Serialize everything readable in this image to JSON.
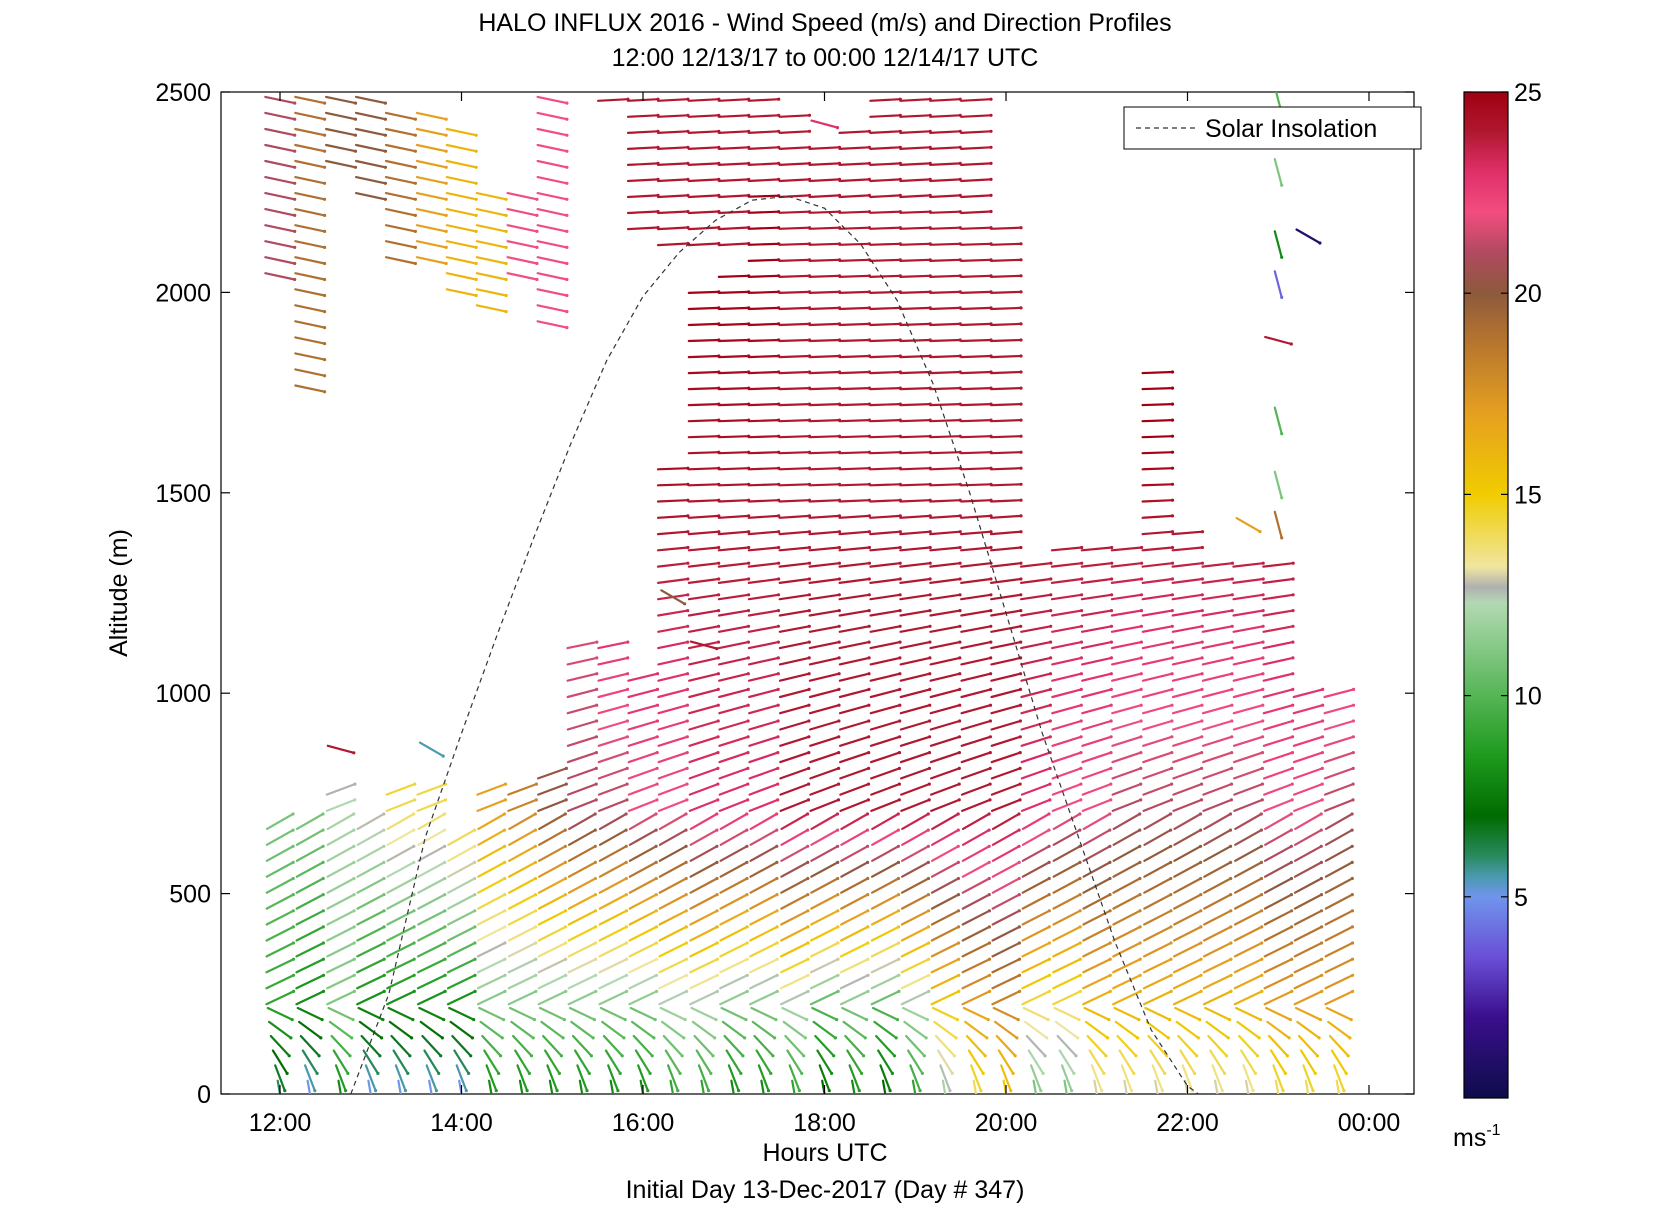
{
  "chart_data": {
    "type": "wind-barb-profile",
    "title": "HALO INFLUX 2016 - Wind Speed (m/s) and Direction Profiles",
    "subtitle": "12:00 12/13/17 to 00:00 12/14/17  UTC",
    "xlabel": "Hours UTC",
    "xlabel2": "Initial Day 13-Dec-2017 (Day # 347)",
    "ylabel": "Altitude (m)",
    "xlim": [
      11.3,
      24.6
    ],
    "ylim": [
      0,
      2500
    ],
    "x_ticks": [
      12,
      14,
      16,
      18,
      20,
      22,
      24
    ],
    "x_tick_labels": [
      "12:00",
      "14:00",
      "16:00",
      "18:00",
      "20:00",
      "22:00",
      "00:00"
    ],
    "y_ticks": [
      0,
      500,
      1000,
      1500,
      2000,
      2500
    ],
    "y_tick_labels": [
      "0",
      "500",
      "1000",
      "1500",
      "2000",
      "2500"
    ],
    "legend": {
      "entries": [
        "Solar Insolation"
      ],
      "placement": "top-right",
      "line_style": "dashed"
    },
    "colorbar": {
      "min": 0,
      "max": 25,
      "ticks": [
        5,
        10,
        15,
        20,
        25
      ],
      "tick_labels": [
        "5",
        "10",
        "15",
        "20",
        "25"
      ],
      "unit_label": "ms",
      "unit_exponent": "-1",
      "stops": [
        {
          "v": 0,
          "c": "#0d0d4a"
        },
        {
          "v": 2,
          "c": "#3a0e8c"
        },
        {
          "v": 3.5,
          "c": "#6a4fd6"
        },
        {
          "v": 5,
          "c": "#6f95ec"
        },
        {
          "v": 5.5,
          "c": "#4a9ab0"
        },
        {
          "v": 6,
          "c": "#2a8a60"
        },
        {
          "v": 7,
          "c": "#006b00"
        },
        {
          "v": 8.5,
          "c": "#1e9a1e"
        },
        {
          "v": 10,
          "c": "#55b555"
        },
        {
          "v": 12.3,
          "c": "#b3d9b3"
        },
        {
          "v": 12.7,
          "c": "#b0b0b0"
        },
        {
          "v": 13.2,
          "c": "#f0e6a0"
        },
        {
          "v": 15,
          "c": "#f0cc00"
        },
        {
          "v": 17,
          "c": "#e6a020"
        },
        {
          "v": 19,
          "c": "#b07030"
        },
        {
          "v": 20,
          "c": "#8c5a3c"
        },
        {
          "v": 21,
          "c": "#b04a60"
        },
        {
          "v": 22,
          "c": "#f24d80"
        },
        {
          "v": 23,
          "c": "#e0306a"
        },
        {
          "v": 24,
          "c": "#b01830"
        },
        {
          "v": 25,
          "c": "#a00010"
        }
      ]
    },
    "solar_insolation": {
      "x": [
        12.78,
        13.2,
        13.6,
        14.0,
        14.4,
        14.8,
        15.2,
        15.6,
        16.0,
        16.4,
        16.8,
        17.2,
        17.6,
        18.0,
        18.4,
        18.8,
        19.2,
        19.6,
        20.0,
        20.4,
        20.8,
        21.2,
        21.6,
        22.0,
        22.12
      ],
      "y": [
        0,
        250,
        640,
        900,
        1150,
        1390,
        1620,
        1830,
        1990,
        2100,
        2180,
        2230,
        2240,
        2210,
        2120,
        1980,
        1770,
        1500,
        1200,
        900,
        640,
        380,
        160,
        20,
        0
      ]
    },
    "barb_grid": {
      "times": [
        12.0,
        12.33,
        12.67,
        13.0,
        13.33,
        13.67,
        14.0,
        14.33,
        14.67,
        15.0,
        15.33,
        15.67,
        16.0,
        16.33,
        16.67,
        17.0,
        17.33,
        17.67,
        18.0,
        18.33,
        18.67,
        19.0,
        19.33,
        19.67,
        20.0,
        20.33,
        20.67,
        21.0,
        21.33,
        21.67,
        22.0,
        22.33,
        22.67,
        23.0,
        23.33,
        23.67
      ],
      "altitude_step_m": 40,
      "profiles": [
        {
          "t": 12.0,
          "top_m": 700,
          "upper_m": [
            2040,
            2480
          ],
          "low_speed_ms": 6,
          "mid_speed_ms": 11,
          "upper_speed_ms": 21
        },
        {
          "t": 12.33,
          "top_m": 700,
          "upper_m": [
            1760,
            2480
          ],
          "low_speed_ms": 5,
          "mid_speed_ms": 11,
          "upper_speed_ms": 19
        },
        {
          "t": 12.67,
          "top_m": 760,
          "upper_m": [
            2320,
            2480
          ],
          "low_speed_ms": 8,
          "mid_speed_ms": 12,
          "upper_speed_ms": 20
        },
        {
          "t": 13.0,
          "top_m": 700,
          "upper_m": [
            2240,
            2480
          ],
          "low_speed_ms": 5,
          "mid_speed_ms": 13,
          "upper_speed_ms": 20
        },
        {
          "t": 13.33,
          "top_m": 790,
          "upper_m": [
            2080,
            2470
          ],
          "low_speed_ms": 5,
          "mid_speed_ms": 14,
          "upper_speed_ms": 19
        },
        {
          "t": 13.67,
          "top_m": 790,
          "upper_m": [
            2080,
            2440
          ],
          "low_speed_ms": 5,
          "mid_speed_ms": 14,
          "upper_speed_ms": 17
        },
        {
          "t": 14.0,
          "top_m": 640,
          "upper_m": [
            2000,
            2400
          ],
          "low_speed_ms": 5,
          "mid_speed_ms": 15,
          "upper_speed_ms": 16
        },
        {
          "t": 14.33,
          "top_m": 790,
          "upper_m": [
            1960,
            2240
          ],
          "low_speed_ms": 8,
          "mid_speed_ms": 17,
          "upper_speed_ms": 16
        },
        {
          "t": 14.67,
          "top_m": 790,
          "upper_m": [
            2040,
            2240
          ],
          "low_speed_ms": 8,
          "mid_speed_ms": 18,
          "upper_speed_ms": 22
        },
        {
          "t": 15.0,
          "top_m": 800,
          "upper_m": [
            1920,
            2480
          ],
          "low_speed_ms": 8,
          "mid_speed_ms": 20,
          "upper_speed_ms": 22
        },
        {
          "t": 15.33,
          "top_m": 1120,
          "upper_m": [
            0,
            0
          ],
          "low_speed_ms": 8,
          "mid_speed_ms": 21,
          "upper_speed_ms": 22
        },
        {
          "t": 15.67,
          "top_m": 1120,
          "upper_m": [
            2480,
            2480
          ],
          "low_speed_ms": 8,
          "mid_speed_ms": 21,
          "upper_speed_ms": 24
        },
        {
          "t": 16.0,
          "top_m": 1040,
          "upper_m": [
            2160,
            2480
          ],
          "low_speed_ms": 8,
          "mid_speed_ms": 22,
          "upper_speed_ms": 24
        },
        {
          "t": 16.33,
          "top_m": 1560,
          "upper_m": [
            2120,
            2480
          ],
          "low_speed_ms": 9,
          "mid_speed_ms": 22,
          "upper_speed_ms": 24
        },
        {
          "t": 16.67,
          "top_m": 2000,
          "upper_m": [
            2120,
            2480
          ],
          "low_speed_ms": 9,
          "mid_speed_ms": 23,
          "upper_speed_ms": 24
        },
        {
          "t": 17.0,
          "top_m": 2040,
          "upper_m": [
            2120,
            2480
          ],
          "low_speed_ms": 8,
          "mid_speed_ms": 23,
          "upper_speed_ms": 24
        },
        {
          "t": 17.33,
          "top_m": 2240,
          "upper_m": [
            2240,
            2480
          ],
          "low_speed_ms": 8,
          "mid_speed_ms": 23,
          "upper_speed_ms": 24
        },
        {
          "t": 17.67,
          "top_m": 2200,
          "upper_m": [
            2200,
            2440
          ],
          "low_speed_ms": 9,
          "mid_speed_ms": 24,
          "upper_speed_ms": 24
        },
        {
          "t": 18.0,
          "top_m": 2200,
          "upper_m": [
            2200,
            2360
          ],
          "low_speed_ms": 7,
          "mid_speed_ms": 24,
          "upper_speed_ms": 24
        },
        {
          "t": 18.33,
          "top_m": 2200,
          "upper_m": [
            2200,
            2400
          ],
          "low_speed_ms": 8,
          "mid_speed_ms": 24,
          "upper_speed_ms": 24
        },
        {
          "t": 18.67,
          "top_m": 2200,
          "upper_m": [
            2200,
            2480
          ],
          "low_speed_ms": 7,
          "mid_speed_ms": 24,
          "upper_speed_ms": 24
        },
        {
          "t": 19.0,
          "top_m": 2200,
          "upper_m": [
            2200,
            2480
          ],
          "low_speed_ms": 9,
          "mid_speed_ms": 24,
          "upper_speed_ms": 24
        },
        {
          "t": 19.33,
          "top_m": 2200,
          "upper_m": [
            2200,
            2480
          ],
          "low_speed_ms": 12,
          "mid_speed_ms": 24,
          "upper_speed_ms": 24
        },
        {
          "t": 19.67,
          "top_m": 2160,
          "upper_m": [
            2160,
            2480
          ],
          "low_speed_ms": 14,
          "mid_speed_ms": 24,
          "upper_speed_ms": 24
        },
        {
          "t": 20.0,
          "top_m": 2160,
          "upper_m": [
            0,
            0
          ],
          "low_speed_ms": 15,
          "mid_speed_ms": 24,
          "upper_speed_ms": 24
        },
        {
          "t": 20.33,
          "top_m": 1320,
          "upper_m": [
            0,
            0
          ],
          "low_speed_ms": 11,
          "mid_speed_ms": 23,
          "upper_speed_ms": 24
        },
        {
          "t": 20.67,
          "top_m": 1360,
          "upper_m": [
            0,
            0
          ],
          "low_speed_ms": 11,
          "mid_speed_ms": 22,
          "upper_speed_ms": 24
        },
        {
          "t": 21.0,
          "top_m": 1360,
          "upper_m": [
            0,
            0
          ],
          "low_speed_ms": 13,
          "mid_speed_ms": 22,
          "upper_speed_ms": 24
        },
        {
          "t": 21.33,
          "top_m": 1360,
          "upper_m": [
            0,
            0
          ],
          "low_speed_ms": 13,
          "mid_speed_ms": 21,
          "upper_speed_ms": 24
        },
        {
          "t": 21.67,
          "top_m": 1800,
          "upper_m": [
            0,
            0
          ],
          "low_speed_ms": 13,
          "mid_speed_ms": 21,
          "upper_speed_ms": 24
        },
        {
          "t": 22.0,
          "top_m": 1400,
          "upper_m": [
            0,
            0
          ],
          "low_speed_ms": 13,
          "mid_speed_ms": 21,
          "upper_speed_ms": 24
        },
        {
          "t": 22.33,
          "top_m": 1320,
          "upper_m": [
            0,
            0
          ],
          "low_speed_ms": 13,
          "mid_speed_ms": 21,
          "upper_speed_ms": 24
        },
        {
          "t": 22.67,
          "top_m": 1320,
          "upper_m": [
            0,
            0
          ],
          "low_speed_ms": 13,
          "mid_speed_ms": 21,
          "upper_speed_ms": 24
        },
        {
          "t": 23.0,
          "top_m": 1320,
          "upper_m": [
            0,
            0
          ],
          "low_speed_ms": 14,
          "mid_speed_ms": 22,
          "upper_speed_ms": 24
        },
        {
          "t": 23.33,
          "top_m": 1000,
          "upper_m": [
            0,
            0
          ],
          "low_speed_ms": 14,
          "mid_speed_ms": 22,
          "upper_speed_ms": 24
        },
        {
          "t": 23.67,
          "top_m": 1000,
          "upper_m": [
            0,
            0
          ],
          "low_speed_ms": 14,
          "mid_speed_ms": 21,
          "upper_speed_ms": 24
        }
      ],
      "isolated_barbs": [
        {
          "t": 12.67,
          "alt": 860,
          "speed": 24
        },
        {
          "t": 13.67,
          "alt": 860,
          "speed": 5.5
        },
        {
          "t": 16.33,
          "alt": 1240,
          "speed": 20
        },
        {
          "t": 16.67,
          "alt": 1120,
          "speed": 24
        },
        {
          "t": 18.0,
          "alt": 2420,
          "speed": 23
        },
        {
          "t": 22.67,
          "alt": 1420,
          "speed": 17
        },
        {
          "t": 23.0,
          "alt": 2480,
          "speed": 10
        },
        {
          "t": 23.0,
          "alt": 2300,
          "speed": 11
        },
        {
          "t": 23.0,
          "alt": 2120,
          "speed": 8
        },
        {
          "t": 23.33,
          "alt": 2140,
          "speed": 1
        },
        {
          "t": 23.0,
          "alt": 2020,
          "speed": 4
        },
        {
          "t": 23.0,
          "alt": 1880,
          "speed": 24
        },
        {
          "t": 23.0,
          "alt": 1680,
          "speed": 10
        },
        {
          "t": 23.0,
          "alt": 1520,
          "speed": 11
        },
        {
          "t": 23.0,
          "alt": 1420,
          "speed": 19
        }
      ]
    }
  }
}
